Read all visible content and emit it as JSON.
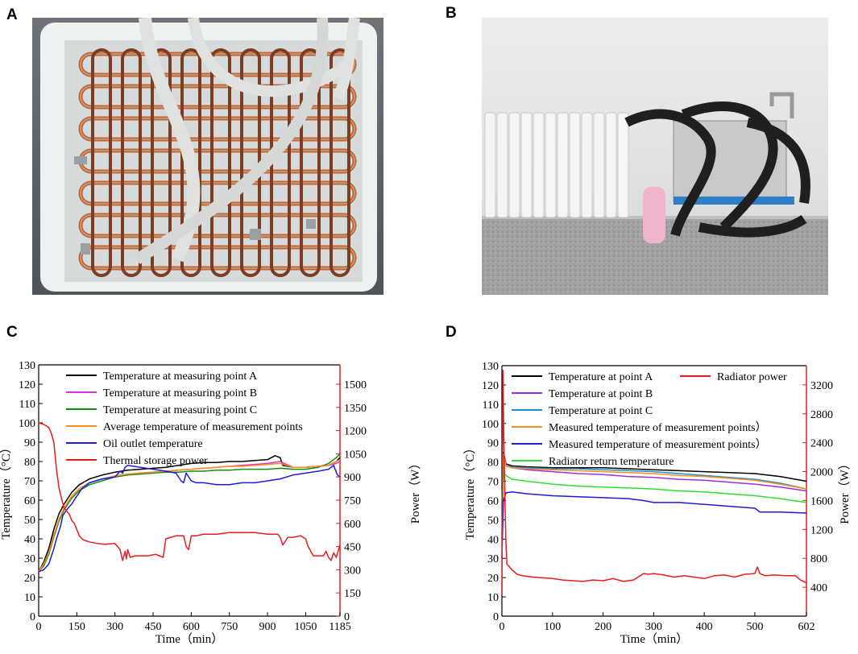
{
  "panels": {
    "a": "A",
    "b": "B",
    "c": "C",
    "d": "D"
  },
  "colors": {
    "copper": "#b8683f",
    "copper_light": "#d89a6e",
    "copper_dark": "#7c3d22",
    "box": "#e8ecee",
    "hose": "#d9dcd8",
    "wall": "#e9e9e9",
    "floor": "#9e9e9e",
    "radiator": "#f4f4f4",
    "tank": "#c8c8c8",
    "hose_black": "#1f1f1f",
    "stand": "#2f7fc7"
  },
  "photos": {
    "a": {
      "icon": "copper-coil-heat-storage-photo"
    },
    "b": {
      "icon": "radiator-and-heat-storage-tank-photo"
    }
  },
  "chart_data": [
    {
      "type": "line",
      "xlabel": "Time（min）",
      "ylabel_left": "Temperature（°C）",
      "ylabel_right": "Power（W）",
      "xlim": [
        0,
        1185
      ],
      "ylim_left": [
        0,
        130
      ],
      "ylim_right": [
        0,
        1625
      ],
      "xticks": [
        0,
        150,
        300,
        450,
        600,
        750,
        900,
        1050,
        1185
      ],
      "yticks_left": [
        0,
        10,
        20,
        30,
        40,
        50,
        60,
        70,
        80,
        90,
        100,
        110,
        120,
        130
      ],
      "yticks_right": [
        0,
        150,
        300,
        450,
        600,
        750,
        900,
        1050,
        1200,
        1350,
        1500
      ],
      "legend": "top-left",
      "series": [
        {
          "name": "Temperature at measuring point A",
          "axis": "left",
          "color": "#000000",
          "x": [
            0,
            20,
            40,
            60,
            80,
            100,
            130,
            160,
            200,
            250,
            300,
            350,
            400,
            450,
            500,
            550,
            600,
            650,
            700,
            750,
            800,
            850,
            900,
            930,
            950,
            960,
            1000,
            1050,
            1100,
            1140,
            1170,
            1185
          ],
          "y": [
            23,
            28,
            35,
            45,
            53,
            58,
            64,
            68,
            71,
            73,
            74.5,
            75.5,
            76,
            76.5,
            77,
            78,
            79,
            79.5,
            79.5,
            80,
            80,
            80.5,
            81,
            83,
            82,
            78,
            77,
            77,
            77.5,
            78,
            80,
            82
          ]
        },
        {
          "name": "Temperature at measuring point B",
          "axis": "left",
          "color": "#e02ee0",
          "x": [
            0,
            20,
            40,
            60,
            80,
            100,
            130,
            160,
            200,
            250,
            300,
            350,
            400,
            450,
            500,
            550,
            600,
            650,
            700,
            750,
            800,
            850,
            900,
            950,
            1000,
            1050,
            1100,
            1140,
            1170,
            1185
          ],
          "y": [
            23,
            27,
            33,
            42,
            50,
            56,
            62,
            66,
            69,
            71,
            72.5,
            73.5,
            74,
            74.5,
            75,
            75.5,
            76,
            76.5,
            77,
            77.5,
            78,
            78.5,
            79,
            80,
            77,
            77,
            77.5,
            78,
            79,
            80
          ]
        },
        {
          "name": "Temperature at measuring point C",
          "axis": "left",
          "color": "#109010",
          "x": [
            0,
            20,
            40,
            60,
            80,
            100,
            130,
            160,
            200,
            250,
            300,
            350,
            400,
            450,
            500,
            550,
            600,
            650,
            700,
            750,
            800,
            850,
            900,
            950,
            1000,
            1050,
            1100,
            1140,
            1170,
            1185
          ],
          "y": [
            23,
            26,
            32,
            41,
            49,
            55,
            61,
            65,
            68,
            70,
            72,
            73,
            73.5,
            74,
            74.5,
            74.5,
            75,
            75,
            75.5,
            75.5,
            76,
            76,
            76,
            76.5,
            76,
            76,
            77,
            79,
            82,
            84
          ]
        },
        {
          "name": "Average temperature of measurement points",
          "axis": "left",
          "color": "#ff8c1a",
          "x": [
            0,
            20,
            40,
            60,
            80,
            100,
            130,
            160,
            200,
            250,
            300,
            350,
            400,
            450,
            500,
            550,
            600,
            650,
            700,
            750,
            800,
            850,
            900,
            950,
            1000,
            1050,
            1100,
            1140,
            1170,
            1185
          ],
          "y": [
            23,
            27,
            33,
            42,
            50,
            56,
            62,
            66,
            69,
            71,
            72.5,
            73.5,
            74,
            74.5,
            75,
            75.5,
            76,
            76.5,
            77,
            77.5,
            77.5,
            78,
            78.5,
            79,
            77,
            77,
            77.5,
            78,
            80,
            81
          ]
        },
        {
          "name": "Oil outlet temperature",
          "axis": "left",
          "color": "#1c1cde",
          "x": [
            0,
            20,
            40,
            60,
            70,
            85,
            95,
            110,
            130,
            150,
            170,
            200,
            250,
            300,
            320,
            330,
            340,
            350,
            400,
            450,
            500,
            540,
            560,
            570,
            580,
            600,
            620,
            650,
            700,
            750,
            800,
            850,
            900,
            950,
            1000,
            1050,
            1100,
            1140,
            1160,
            1175,
            1185
          ],
          "y": [
            23,
            24,
            27,
            35,
            40,
            46,
            52,
            55,
            58,
            62,
            66,
            69,
            71,
            72,
            75,
            74,
            77,
            78,
            77,
            76,
            75,
            74,
            70,
            69,
            74,
            70,
            69,
            69,
            68,
            68,
            69,
            69,
            70,
            71,
            73,
            74,
            75,
            76,
            78,
            73,
            72
          ]
        },
        {
          "name": "Thermal storage power",
          "axis": "right",
          "color": "#e81c1c",
          "x": [
            0,
            20,
            40,
            50,
            60,
            70,
            80,
            90,
            100,
            110,
            120,
            130,
            140,
            150,
            160,
            170,
            180,
            200,
            230,
            260,
            300,
            320,
            330,
            340,
            345,
            350,
            360,
            380,
            400,
            430,
            460,
            490,
            500,
            540,
            570,
            580,
            590,
            600,
            620,
            650,
            700,
            750,
            800,
            850,
            900,
            940,
            950,
            960,
            980,
            1000,
            1030,
            1050,
            1060,
            1080,
            1100,
            1120,
            1130,
            1140,
            1150,
            1160,
            1170,
            1185
          ],
          "y": [
            1250,
            1240,
            1220,
            1180,
            1120,
            950,
            830,
            760,
            700,
            680,
            660,
            620,
            600,
            560,
            520,
            500,
            490,
            480,
            470,
            465,
            470,
            430,
            360,
            420,
            370,
            430,
            380,
            390,
            390,
            390,
            400,
            380,
            500,
            520,
            520,
            450,
            430,
            520,
            520,
            530,
            530,
            540,
            540,
            540,
            530,
            530,
            510,
            460,
            510,
            510,
            520,
            500,
            450,
            390,
            390,
            390,
            420,
            380,
            360,
            410,
            380,
            460
          ]
        }
      ]
    },
    {
      "type": "line",
      "xlabel": "Time（min）",
      "ylabel_left": "Temperature（°C）",
      "ylabel_right": "Power（W）",
      "xlim": [
        0,
        602
      ],
      "ylim_left": [
        0,
        130
      ],
      "ylim_right": [
        0,
        3466
      ],
      "xticks": [
        0,
        100,
        200,
        300,
        400,
        500,
        602
      ],
      "yticks_left": [
        0,
        10,
        20,
        30,
        40,
        50,
        60,
        70,
        80,
        90,
        100,
        110,
        120,
        130
      ],
      "yticks_right": [
        400,
        800,
        1200,
        1600,
        2000,
        2400,
        2800,
        3200
      ],
      "legend": "top",
      "series": [
        {
          "name": "Temperature at point A",
          "axis": "left",
          "color": "#000000",
          "x": [
            0,
            3,
            8,
            20,
            50,
            100,
            150,
            200,
            250,
            300,
            350,
            400,
            450,
            500,
            550,
            602
          ],
          "y": [
            40,
            85,
            79,
            78,
            77.5,
            77,
            77,
            77,
            76.5,
            76,
            75.5,
            75,
            74.5,
            74,
            72.5,
            70
          ]
        },
        {
          "name": "Temperature at point B",
          "axis": "left",
          "color": "#9b30d8",
          "x": [
            0,
            3,
            8,
            20,
            50,
            100,
            150,
            200,
            250,
            300,
            350,
            400,
            450,
            500,
            550,
            602
          ],
          "y": [
            40,
            84,
            78,
            77,
            76,
            75,
            74,
            73.5,
            72.5,
            72,
            71,
            70.5,
            69.5,
            68.5,
            67,
            65
          ]
        },
        {
          "name": "Temperature at point C",
          "axis": "left",
          "color": "#1a8fd6",
          "x": [
            0,
            3,
            8,
            20,
            50,
            100,
            150,
            200,
            250,
            300,
            350,
            400,
            450,
            500,
            550,
            602
          ],
          "y": [
            40,
            84,
            78,
            77.5,
            77,
            76.5,
            76.5,
            76,
            75.5,
            75,
            74,
            73,
            72,
            71,
            69,
            66
          ]
        },
        {
          "name": "Measured temperature of measurement points）",
          "axis": "left",
          "color": "#ff8c1a",
          "x": [
            0,
            3,
            8,
            20,
            50,
            100,
            150,
            200,
            250,
            300,
            350,
            400,
            450,
            500,
            550,
            602
          ],
          "y": [
            40,
            84,
            78,
            77,
            76.5,
            76,
            75.5,
            75,
            74.5,
            74,
            73,
            72.5,
            71.5,
            70.5,
            68.5,
            66
          ]
        },
        {
          "name": "Measured temperature of measurement points）",
          "axis": "left",
          "color": "#1c1cd8",
          "x": [
            0,
            3,
            8,
            20,
            50,
            100,
            150,
            200,
            250,
            280,
            300,
            350,
            400,
            450,
            500,
            510,
            550,
            602
          ],
          "y": [
            30,
            60,
            64,
            64.5,
            63.5,
            62.5,
            62,
            61.5,
            61,
            60,
            59,
            59,
            58,
            57,
            56,
            54,
            54,
            53.5
          ]
        },
        {
          "name": "Radiator return temperature",
          "axis": "left",
          "color": "#2ee02e",
          "x": [
            0,
            3,
            8,
            20,
            50,
            100,
            150,
            200,
            250,
            300,
            350,
            400,
            450,
            500,
            550,
            602
          ],
          "y": [
            60,
            75,
            73,
            71,
            70,
            68.5,
            67.5,
            67,
            66.5,
            66,
            65,
            64.5,
            63.5,
            62.5,
            61,
            59
          ]
        },
        {
          "name": "Radiator power",
          "axis": "right",
          "color": "#e81c1c",
          "x": [
            0,
            2,
            4,
            6,
            8,
            10,
            15,
            20,
            30,
            40,
            60,
            80,
            100,
            120,
            140,
            160,
            180,
            200,
            220,
            240,
            260,
            280,
            290,
            300,
            320,
            340,
            360,
            380,
            400,
            420,
            440,
            460,
            480,
            500,
            505,
            510,
            520,
            540,
            560,
            580,
            590,
            602
          ],
          "y": [
            300,
            3400,
            2400,
            1600,
            1000,
            720,
            680,
            640,
            580,
            560,
            540,
            530,
            520,
            500,
            490,
            480,
            500,
            490,
            520,
            480,
            500,
            590,
            580,
            590,
            570,
            540,
            560,
            540,
            520,
            560,
            570,
            540,
            580,
            590,
            680,
            590,
            560,
            570,
            560,
            560,
            500,
            460
          ]
        }
      ]
    }
  ]
}
